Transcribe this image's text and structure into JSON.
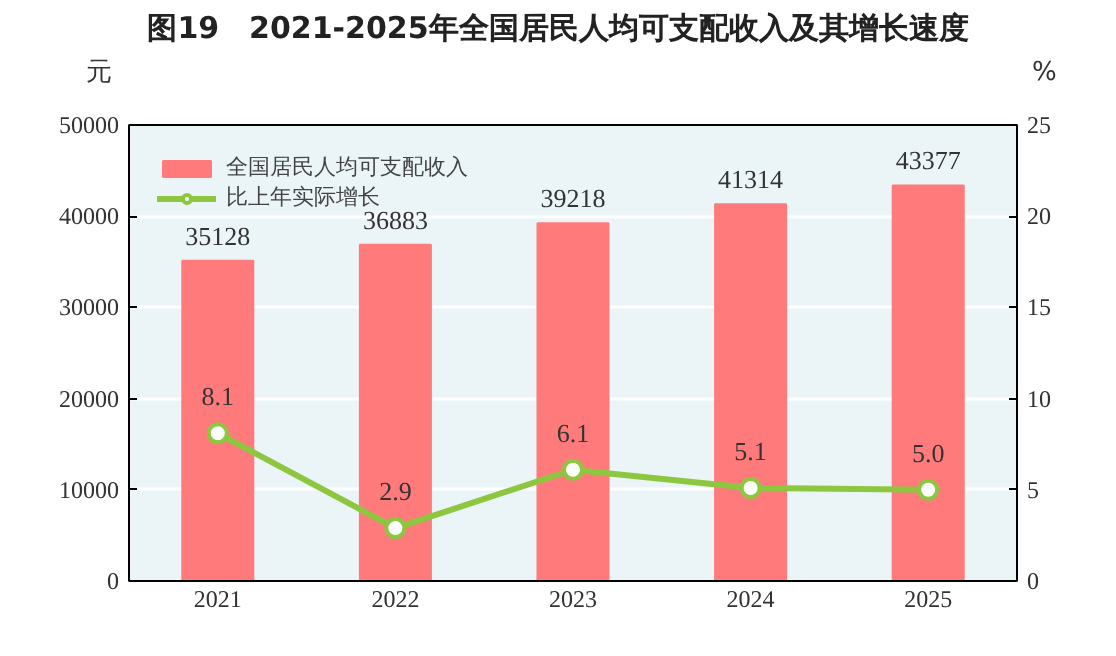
{
  "chart_data": {
    "type": "bar",
    "title": "图19　2021-2025年全国居民人均可支配收入及其增长速度",
    "categories": [
      "2021",
      "2022",
      "2023",
      "2024",
      "2025"
    ],
    "ylabel": "元",
    "y2label": "%",
    "ylim": [
      0,
      50000
    ],
    "yticks": [
      0,
      10000,
      20000,
      30000,
      40000,
      50000
    ],
    "y2lim": [
      0,
      25
    ],
    "y2ticks": [
      0,
      5,
      10,
      15,
      20,
      25
    ],
    "grid": "y",
    "data_labels": true,
    "legend": "top left",
    "marker": "circle",
    "line_style": "solid",
    "series": [
      {
        "name": "全国居民人均可支配收入",
        "color": "#ff7b7b",
        "values": [
          35128,
          36883,
          39218,
          41314,
          43377
        ]
      },
      {
        "name": "比上年实际增长",
        "type": "line",
        "axis": "y2",
        "color": "#8dc63f",
        "values": [
          8.1,
          2.9,
          6.1,
          5.1,
          5.0
        ],
        "value_labels": [
          "8.1",
          "2.9",
          "6.1",
          "5.1",
          "5.0"
        ]
      }
    ]
  }
}
